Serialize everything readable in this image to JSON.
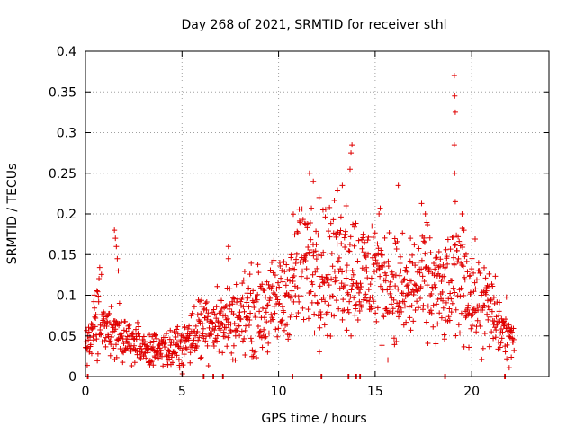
{
  "chart_data": {
    "type": "scatter",
    "title": "Day 268 of 2021, SRMTID for receiver sthl",
    "xlabel": "GPS time / hours",
    "ylabel": "SRMTID / TECUs",
    "xlim": [
      0,
      24
    ],
    "ylim": [
      0,
      0.4
    ],
    "xticks": [
      0,
      5,
      10,
      15,
      20
    ],
    "xtick_labels": [
      "0",
      "5",
      "10",
      "15",
      "20"
    ],
    "yticks": [
      0,
      0.05,
      0.1,
      0.15,
      0.2,
      0.25,
      0.3,
      0.35,
      0.4
    ],
    "ytick_labels": [
      "0",
      "0.05",
      "0.1",
      "0.15",
      "0.2",
      "0.25",
      "0.3",
      "0.35",
      "0.4"
    ],
    "grid": true,
    "marker": "plus",
    "color": "#e00000",
    "zero_markers_x": [
      0.1,
      6.1,
      6.6,
      7.1,
      10.7,
      12.2,
      13.6,
      14.0,
      14.2,
      18.6,
      21.7
    ],
    "trend": [
      [
        0.0,
        0.03
      ],
      [
        0.3,
        0.05
      ],
      [
        0.7,
        0.08
      ],
      [
        1.0,
        0.06
      ],
      [
        1.3,
        0.05
      ],
      [
        1.5,
        0.07
      ],
      [
        1.7,
        0.06
      ],
      [
        2.0,
        0.05
      ],
      [
        2.5,
        0.04
      ],
      [
        3.0,
        0.035
      ],
      [
        3.5,
        0.03
      ],
      [
        4.0,
        0.03
      ],
      [
        4.5,
        0.035
      ],
      [
        5.0,
        0.04
      ],
      [
        5.5,
        0.05
      ],
      [
        6.0,
        0.065
      ],
      [
        6.5,
        0.07
      ],
      [
        7.0,
        0.065
      ],
      [
        7.5,
        0.07
      ],
      [
        8.0,
        0.075
      ],
      [
        8.5,
        0.08
      ],
      [
        9.0,
        0.08
      ],
      [
        9.5,
        0.085
      ],
      [
        10.0,
        0.09
      ],
      [
        10.5,
        0.11
      ],
      [
        11.0,
        0.13
      ],
      [
        11.5,
        0.14
      ],
      [
        12.0,
        0.14
      ],
      [
        12.5,
        0.13
      ],
      [
        13.0,
        0.14
      ],
      [
        13.5,
        0.14
      ],
      [
        14.0,
        0.13
      ],
      [
        14.5,
        0.12
      ],
      [
        15.0,
        0.13
      ],
      [
        15.5,
        0.12
      ],
      [
        16.0,
        0.11
      ],
      [
        16.5,
        0.1
      ],
      [
        17.0,
        0.11
      ],
      [
        17.5,
        0.12
      ],
      [
        18.0,
        0.11
      ],
      [
        18.5,
        0.1
      ],
      [
        19.0,
        0.11
      ],
      [
        19.5,
        0.13
      ],
      [
        20.0,
        0.1
      ],
      [
        20.5,
        0.09
      ],
      [
        21.0,
        0.08
      ],
      [
        21.5,
        0.06
      ],
      [
        22.0,
        0.05
      ],
      [
        22.2,
        0.04
      ]
    ],
    "spikes": [
      [
        1.5,
        0.18
      ],
      [
        1.55,
        0.17
      ],
      [
        1.6,
        0.16
      ],
      [
        1.65,
        0.145
      ],
      [
        1.7,
        0.13
      ],
      [
        7.4,
        0.16
      ],
      [
        7.4,
        0.145
      ],
      [
        11.6,
        0.25
      ],
      [
        11.8,
        0.24
      ],
      [
        12.1,
        0.22
      ],
      [
        12.3,
        0.205
      ],
      [
        13.3,
        0.235
      ],
      [
        13.5,
        0.21
      ],
      [
        13.8,
        0.285
      ],
      [
        13.75,
        0.275
      ],
      [
        13.7,
        0.255
      ],
      [
        16.2,
        0.235
      ],
      [
        15.2,
        0.2
      ],
      [
        17.6,
        0.2
      ],
      [
        19.1,
        0.37
      ],
      [
        19.12,
        0.345
      ],
      [
        19.15,
        0.325
      ],
      [
        19.1,
        0.285
      ],
      [
        19.12,
        0.25
      ],
      [
        19.15,
        0.215
      ],
      [
        19.5,
        0.2
      ],
      [
        19.6,
        0.18
      ]
    ]
  }
}
